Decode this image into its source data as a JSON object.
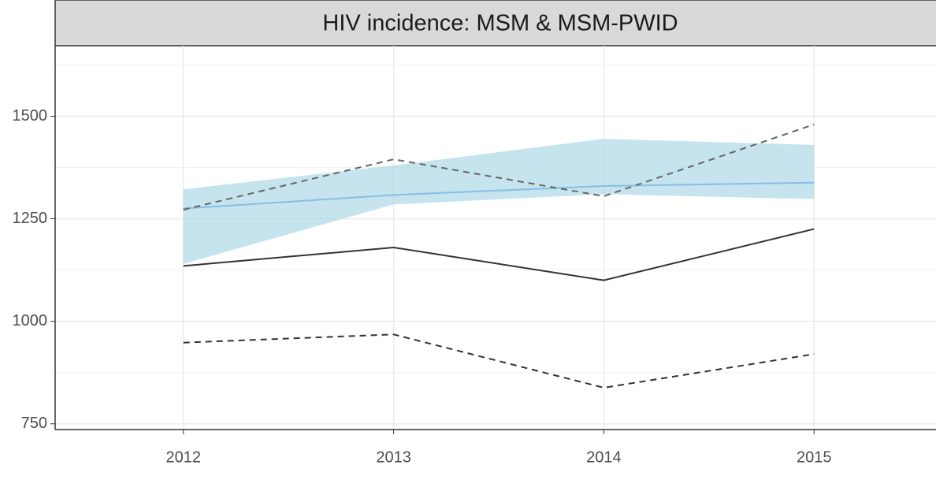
{
  "chart_data": {
    "type": "line",
    "title": "HIV incidence: MSM & MSM-PWID",
    "x": [
      2012,
      2013,
      2014,
      2015
    ],
    "xlim": [
      2011.39,
      2015.58
    ],
    "xticks": [
      2012,
      2013,
      2014,
      2015
    ],
    "ylim": [
      736,
      1672
    ],
    "yticks": [
      750,
      1000,
      1250,
      1500
    ],
    "minor_yticks": [
      875,
      1125,
      1375,
      1625
    ],
    "grid": true,
    "band": {
      "color": "#add8e6",
      "lower": [
        1140,
        1285,
        1310,
        1298
      ],
      "upper": [
        1322,
        1380,
        1445,
        1430
      ]
    },
    "series": [
      {
        "color": "#87bde8",
        "dash": "solid",
        "values": [
          1275,
          1308,
          1330,
          1338
        ]
      },
      {
        "color": "#333333",
        "dash": "solid",
        "values": [
          1135,
          1180,
          1100,
          1225
        ]
      },
      {
        "color": "#666666",
        "dash": "dashed",
        "values": [
          1272,
          1395,
          1305,
          1480
        ]
      },
      {
        "color": "#333333",
        "dash": "dashed",
        "values": [
          948,
          968,
          838,
          920
        ]
      }
    ]
  }
}
